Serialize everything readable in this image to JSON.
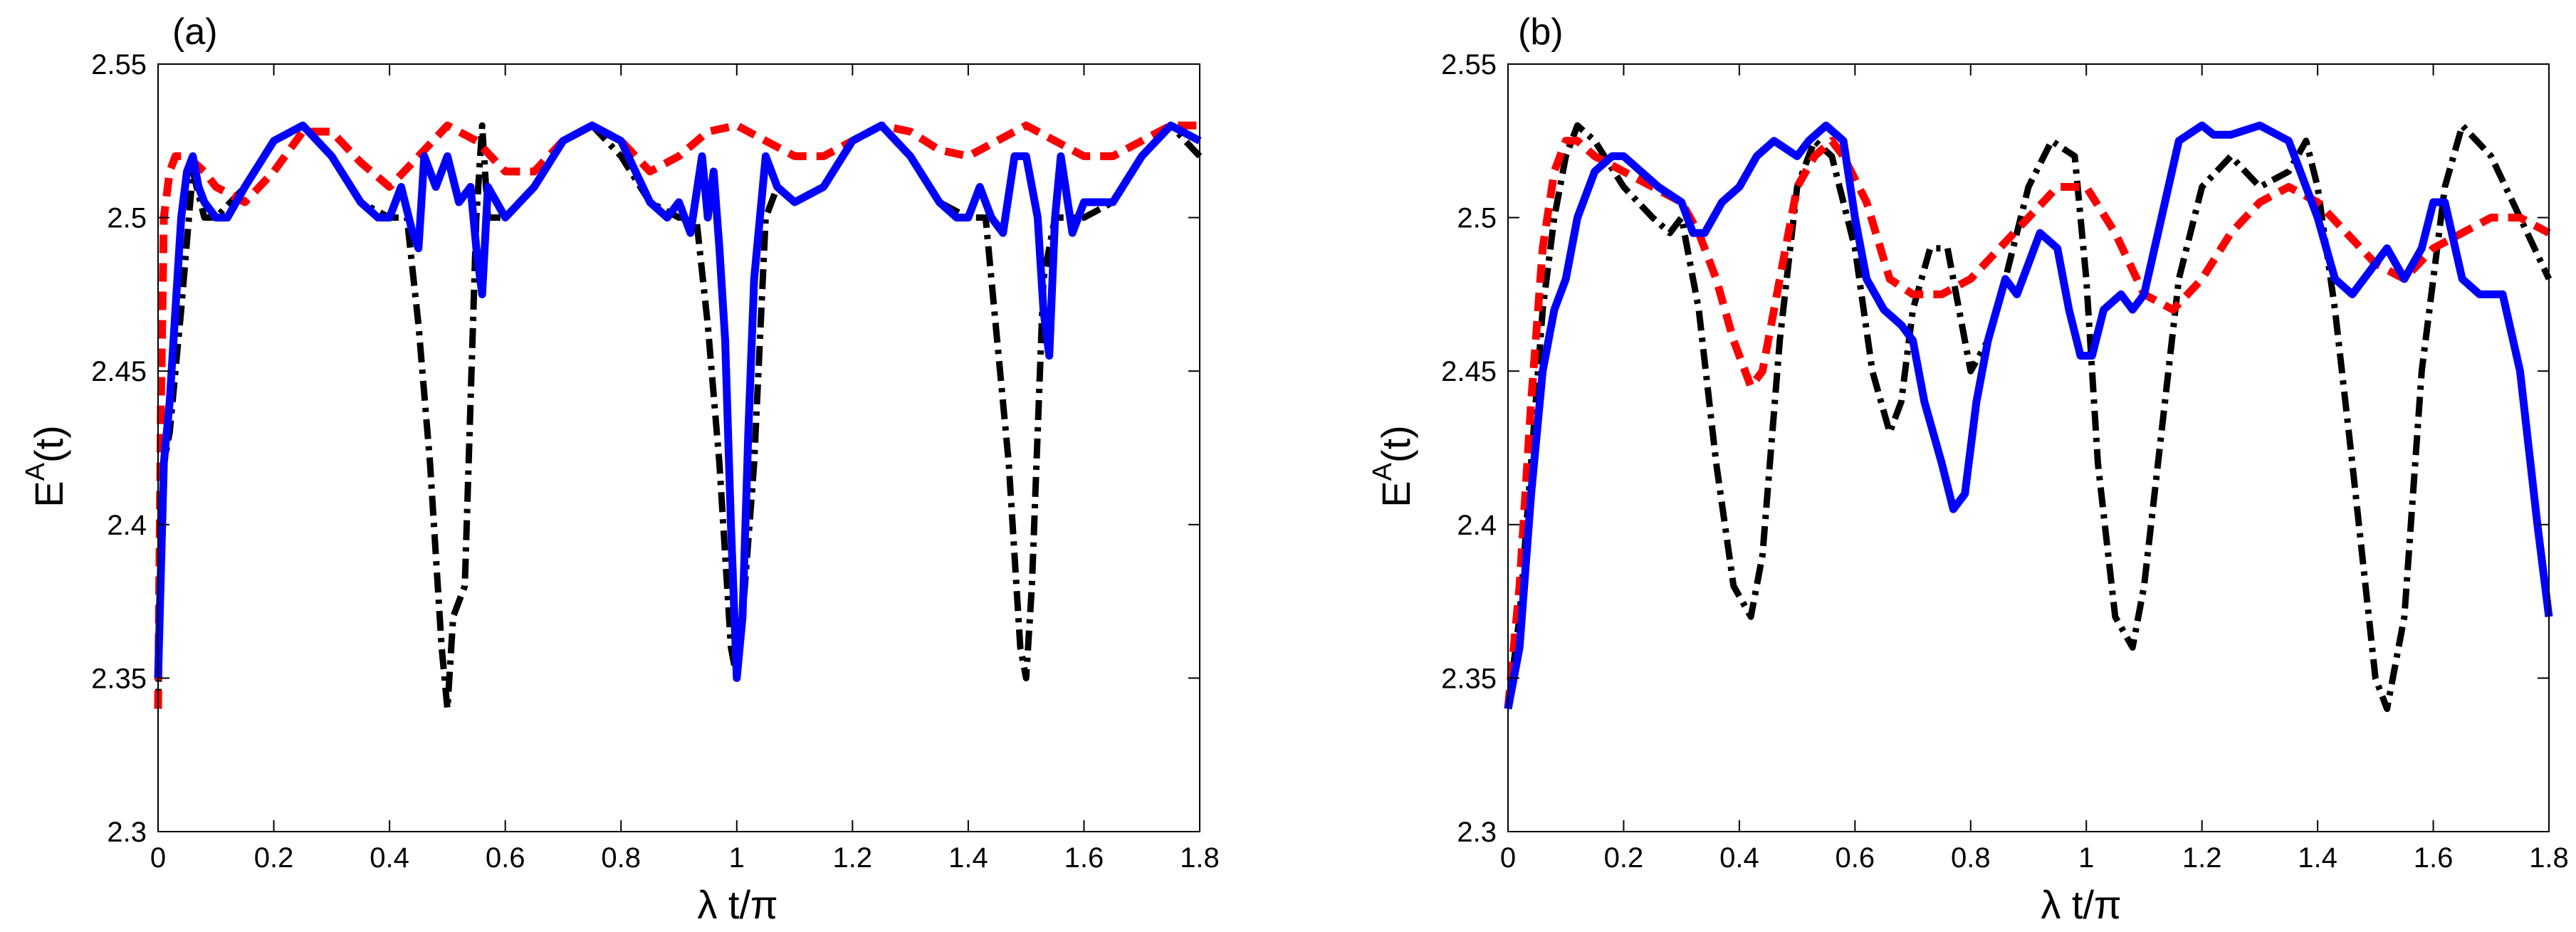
{
  "chart_data": [
    {
      "type": "line",
      "panel_label": "(a)",
      "xlabel": "λ t/π",
      "ylabel_main": "E",
      "ylabel_sup": "A",
      "ylabel_arg": "(t)",
      "xlim": [
        0,
        1.8
      ],
      "ylim": [
        2.3,
        2.55
      ],
      "xticks": [
        0,
        0.2,
        0.4,
        0.6,
        0.8,
        1,
        1.2,
        1.4,
        1.6,
        1.8
      ],
      "xtick_labels": [
        "0",
        "0.2",
        "0.4",
        "0.6",
        "0.8",
        "1",
        "1.2",
        "1.4",
        "1.6",
        "1.8"
      ],
      "yticks": [
        2.3,
        2.35,
        2.4,
        2.45,
        2.5,
        2.55
      ],
      "ytick_labels": [
        "2.3",
        "2.35",
        "2.4",
        "2.45",
        "2.5",
        "2.55"
      ],
      "grid": false,
      "series": [
        {
          "name": "dash-dot",
          "color": "#000000",
          "style": "dashdot",
          "x": [
            0,
            0.01,
            0.02,
            0.04,
            0.06,
            0.08,
            0.1,
            0.15,
            0.2,
            0.25,
            0.3,
            0.35,
            0.4,
            0.43,
            0.45,
            0.47,
            0.49,
            0.5,
            0.51,
            0.53,
            0.55,
            0.56,
            0.57,
            0.6,
            0.65,
            0.7,
            0.75,
            0.8,
            0.85,
            0.9,
            0.93,
            0.95,
            0.97,
            0.99,
            1.0,
            1.01,
            1.03,
            1.05,
            1.07,
            1.1,
            1.15,
            1.2,
            1.25,
            1.3,
            1.35,
            1.4,
            1.43,
            1.45,
            1.47,
            1.49,
            1.5,
            1.51,
            1.53,
            1.55,
            1.57,
            1.6,
            1.65,
            1.7,
            1.75,
            1.8
          ],
          "y": [
            2.34,
            2.42,
            2.43,
            2.47,
            2.515,
            2.5,
            2.5,
            2.51,
            2.525,
            2.53,
            2.52,
            2.505,
            2.5,
            2.5,
            2.465,
            2.42,
            2.36,
            2.34,
            2.37,
            2.38,
            2.5,
            2.53,
            2.5,
            2.5,
            2.51,
            2.525,
            2.53,
            2.52,
            2.505,
            2.5,
            2.5,
            2.465,
            2.42,
            2.36,
            2.35,
            2.37,
            2.42,
            2.5,
            2.51,
            2.505,
            2.51,
            2.525,
            2.53,
            2.52,
            2.505,
            2.5,
            2.5,
            2.46,
            2.42,
            2.36,
            2.35,
            2.38,
            2.48,
            2.5,
            2.5,
            2.5,
            2.505,
            2.52,
            2.53,
            2.52
          ]
        },
        {
          "name": "dashed",
          "color": "#ff0000",
          "style": "dashed",
          "x": [
            0,
            0.005,
            0.01,
            0.02,
            0.03,
            0.05,
            0.08,
            0.1,
            0.15,
            0.2,
            0.25,
            0.3,
            0.35,
            0.4,
            0.45,
            0.5,
            0.55,
            0.6,
            0.65,
            0.7,
            0.75,
            0.8,
            0.85,
            0.9,
            0.95,
            1.0,
            1.05,
            1.1,
            1.15,
            1.2,
            1.25,
            1.3,
            1.35,
            1.4,
            1.45,
            1.5,
            1.55,
            1.6,
            1.65,
            1.7,
            1.75,
            1.8
          ],
          "y": [
            2.34,
            2.44,
            2.5,
            2.515,
            2.52,
            2.52,
            2.515,
            2.51,
            2.505,
            2.515,
            2.528,
            2.528,
            2.518,
            2.51,
            2.52,
            2.53,
            2.525,
            2.515,
            2.515,
            2.525,
            2.53,
            2.525,
            2.515,
            2.52,
            2.528,
            2.53,
            2.525,
            2.52,
            2.52,
            2.525,
            2.53,
            2.528,
            2.522,
            2.52,
            2.525,
            2.53,
            2.525,
            2.52,
            2.52,
            2.525,
            2.53,
            2.53
          ]
        },
        {
          "name": "solid",
          "color": "#0000ff",
          "style": "solid",
          "x": [
            0,
            0.01,
            0.02,
            0.03,
            0.04,
            0.05,
            0.06,
            0.07,
            0.08,
            0.1,
            0.12,
            0.15,
            0.2,
            0.25,
            0.3,
            0.35,
            0.38,
            0.4,
            0.42,
            0.44,
            0.45,
            0.46,
            0.48,
            0.5,
            0.52,
            0.54,
            0.55,
            0.56,
            0.57,
            0.6,
            0.65,
            0.7,
            0.75,
            0.8,
            0.85,
            0.88,
            0.9,
            0.92,
            0.94,
            0.95,
            0.96,
            0.97,
            0.98,
            0.99,
            1.0,
            1.01,
            1.02,
            1.03,
            1.05,
            1.07,
            1.1,
            1.15,
            1.2,
            1.25,
            1.3,
            1.35,
            1.38,
            1.4,
            1.42,
            1.44,
            1.46,
            1.48,
            1.5,
            1.52,
            1.53,
            1.54,
            1.55,
            1.56,
            1.58,
            1.6,
            1.65,
            1.7,
            1.75,
            1.8
          ],
          "y": [
            2.35,
            2.42,
            2.44,
            2.47,
            2.5,
            2.515,
            2.52,
            2.51,
            2.505,
            2.5,
            2.5,
            2.51,
            2.525,
            2.53,
            2.52,
            2.505,
            2.5,
            2.5,
            2.51,
            2.495,
            2.49,
            2.52,
            2.51,
            2.52,
            2.505,
            2.51,
            2.49,
            2.475,
            2.51,
            2.5,
            2.51,
            2.525,
            2.53,
            2.525,
            2.505,
            2.5,
            2.505,
            2.495,
            2.52,
            2.5,
            2.515,
            2.49,
            2.46,
            2.4,
            2.35,
            2.37,
            2.43,
            2.48,
            2.52,
            2.51,
            2.505,
            2.51,
            2.525,
            2.53,
            2.52,
            2.505,
            2.5,
            2.5,
            2.51,
            2.5,
            2.495,
            2.52,
            2.52,
            2.5,
            2.47,
            2.455,
            2.5,
            2.52,
            2.495,
            2.505,
            2.505,
            2.52,
            2.53,
            2.525
          ]
        }
      ]
    },
    {
      "type": "line",
      "panel_label": "(b)",
      "xlabel": "λ t/π",
      "ylabel_main": "E",
      "ylabel_sup": "A",
      "ylabel_arg": "(t)",
      "xlim": [
        0,
        1.8
      ],
      "ylim": [
        2.3,
        2.55
      ],
      "xticks": [
        0,
        0.2,
        0.4,
        0.6,
        0.8,
        1,
        1.2,
        1.4,
        1.6,
        1.8
      ],
      "xtick_labels": [
        "0",
        "0.2",
        "0.4",
        "0.6",
        "0.8",
        "1",
        "1.2",
        "1.4",
        "1.6",
        "1.8"
      ],
      "yticks": [
        2.3,
        2.35,
        2.4,
        2.45,
        2.5,
        2.55
      ],
      "ytick_labels": [
        "2.3",
        "2.35",
        "2.4",
        "2.45",
        "2.5",
        "2.55"
      ],
      "grid": false,
      "series": [
        {
          "name": "dash-dot",
          "color": "#000000",
          "style": "dashdot",
          "x": [
            0,
            0.02,
            0.04,
            0.06,
            0.08,
            0.1,
            0.12,
            0.15,
            0.2,
            0.25,
            0.28,
            0.3,
            0.33,
            0.36,
            0.39,
            0.42,
            0.44,
            0.47,
            0.5,
            0.53,
            0.56,
            0.6,
            0.63,
            0.66,
            0.68,
            0.7,
            0.73,
            0.76,
            0.78,
            0.8,
            0.83,
            0.86,
            0.9,
            0.94,
            0.98,
            1.0,
            1.02,
            1.05,
            1.08,
            1.1,
            1.13,
            1.16,
            1.2,
            1.25,
            1.3,
            1.35,
            1.38,
            1.4,
            1.43,
            1.46,
            1.5,
            1.52,
            1.55,
            1.58,
            1.62,
            1.65,
            1.7,
            1.75,
            1.8
          ],
          "y": [
            2.34,
            2.37,
            2.42,
            2.47,
            2.5,
            2.52,
            2.53,
            2.525,
            2.51,
            2.5,
            2.495,
            2.5,
            2.47,
            2.42,
            2.38,
            2.37,
            2.39,
            2.46,
            2.51,
            2.525,
            2.52,
            2.49,
            2.45,
            2.43,
            2.44,
            2.47,
            2.49,
            2.49,
            2.47,
            2.45,
            2.46,
            2.48,
            2.51,
            2.525,
            2.52,
            2.48,
            2.42,
            2.37,
            2.36,
            2.38,
            2.43,
            2.48,
            2.51,
            2.52,
            2.51,
            2.515,
            2.525,
            2.51,
            2.47,
            2.42,
            2.35,
            2.34,
            2.37,
            2.45,
            2.51,
            2.53,
            2.52,
            2.5,
            2.48
          ]
        },
        {
          "name": "dashed",
          "color": "#ff0000",
          "style": "dashed",
          "x": [
            0,
            0.02,
            0.04,
            0.06,
            0.08,
            0.1,
            0.12,
            0.15,
            0.2,
            0.25,
            0.3,
            0.33,
            0.36,
            0.39,
            0.42,
            0.44,
            0.47,
            0.5,
            0.53,
            0.56,
            0.58,
            0.62,
            0.66,
            0.7,
            0.75,
            0.8,
            0.85,
            0.9,
            0.95,
            1.0,
            1.05,
            1.1,
            1.15,
            1.2,
            1.25,
            1.3,
            1.35,
            1.4,
            1.45,
            1.5,
            1.55,
            1.6,
            1.65,
            1.7,
            1.75,
            1.8
          ],
          "y": [
            2.34,
            2.38,
            2.44,
            2.49,
            2.515,
            2.525,
            2.525,
            2.52,
            2.515,
            2.51,
            2.505,
            2.495,
            2.48,
            2.46,
            2.445,
            2.45,
            2.48,
            2.51,
            2.52,
            2.525,
            2.52,
            2.505,
            2.48,
            2.475,
            2.475,
            2.48,
            2.49,
            2.5,
            2.51,
            2.51,
            2.495,
            2.475,
            2.47,
            2.48,
            2.495,
            2.505,
            2.51,
            2.505,
            2.495,
            2.485,
            2.48,
            2.49,
            2.495,
            2.5,
            2.5,
            2.495
          ]
        },
        {
          "name": "solid",
          "color": "#0000ff",
          "style": "solid",
          "x": [
            0,
            0.02,
            0.04,
            0.06,
            0.08,
            0.1,
            0.12,
            0.15,
            0.18,
            0.2,
            0.23,
            0.26,
            0.3,
            0.32,
            0.34,
            0.37,
            0.4,
            0.43,
            0.46,
            0.5,
            0.52,
            0.55,
            0.58,
            0.6,
            0.62,
            0.65,
            0.68,
            0.7,
            0.72,
            0.75,
            0.77,
            0.79,
            0.81,
            0.83,
            0.86,
            0.88,
            0.9,
            0.92,
            0.95,
            0.97,
            0.99,
            1.01,
            1.03,
            1.06,
            1.08,
            1.1,
            1.13,
            1.16,
            1.2,
            1.22,
            1.25,
            1.3,
            1.35,
            1.4,
            1.43,
            1.46,
            1.5,
            1.52,
            1.55,
            1.58,
            1.6,
            1.62,
            1.65,
            1.68,
            1.72,
            1.75,
            1.78,
            1.8
          ],
          "y": [
            2.34,
            2.36,
            2.41,
            2.45,
            2.47,
            2.48,
            2.5,
            2.515,
            2.52,
            2.52,
            2.515,
            2.51,
            2.505,
            2.495,
            2.495,
            2.505,
            2.51,
            2.52,
            2.525,
            2.52,
            2.525,
            2.53,
            2.525,
            2.5,
            2.48,
            2.47,
            2.465,
            2.46,
            2.44,
            2.42,
            2.405,
            2.41,
            2.44,
            2.46,
            2.48,
            2.475,
            2.485,
            2.495,
            2.49,
            2.47,
            2.455,
            2.455,
            2.47,
            2.475,
            2.47,
            2.475,
            2.5,
            2.525,
            2.53,
            2.527,
            2.527,
            2.53,
            2.525,
            2.5,
            2.48,
            2.475,
            2.485,
            2.49,
            2.48,
            2.49,
            2.505,
            2.505,
            2.48,
            2.475,
            2.475,
            2.45,
            2.4,
            2.37
          ]
        }
      ]
    }
  ]
}
